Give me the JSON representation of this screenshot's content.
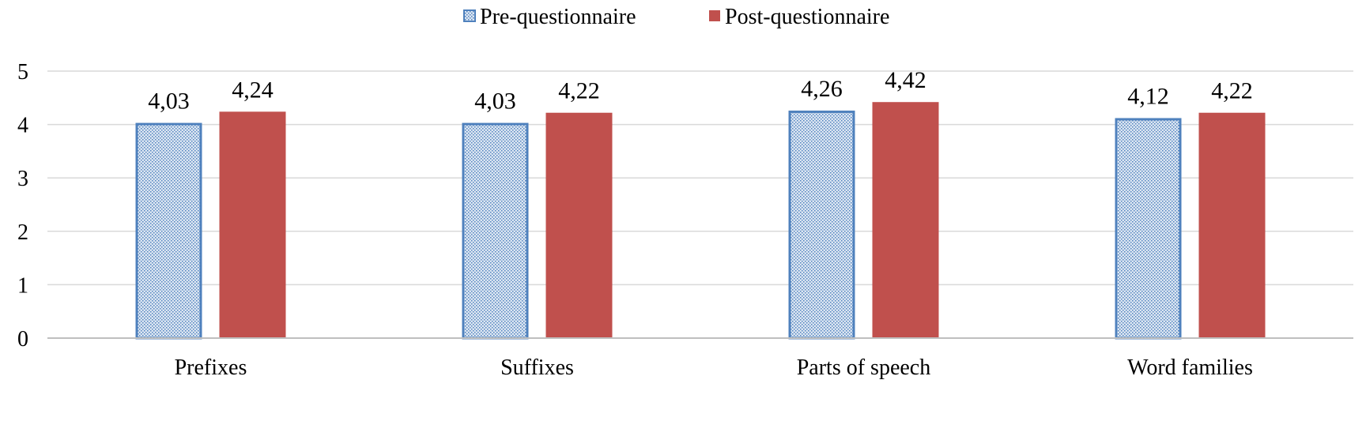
{
  "chart_data": {
    "type": "bar",
    "title": "",
    "xlabel": "",
    "ylabel": "",
    "categories": [
      "Prefixes",
      "Suffixes",
      "Parts of speech",
      "Word families"
    ],
    "series": [
      {
        "name": "Pre-questionnaire",
        "values": [
          4.03,
          4.03,
          4.26,
          4.12
        ],
        "labels": [
          "4,03",
          "4,03",
          "4,26",
          "4,12"
        ],
        "fill": "#DCE6F2",
        "border": "#4F81BD",
        "pattern": "dotted"
      },
      {
        "name": "Post-questionnaire",
        "values": [
          4.24,
          4.22,
          4.42,
          4.22
        ],
        "labels": [
          "4,24",
          "4,22",
          "4,42",
          "4,22"
        ],
        "fill": "#C0504D",
        "border": "#C0504D",
        "pattern": "solid"
      }
    ],
    "ylim": [
      0,
      5
    ],
    "yticks": [
      0,
      1,
      2,
      3,
      4,
      5
    ],
    "grid": true,
    "legend": "top-center",
    "gridline_color": "#D9D9D9",
    "axis_color": "#BFBFBF"
  }
}
